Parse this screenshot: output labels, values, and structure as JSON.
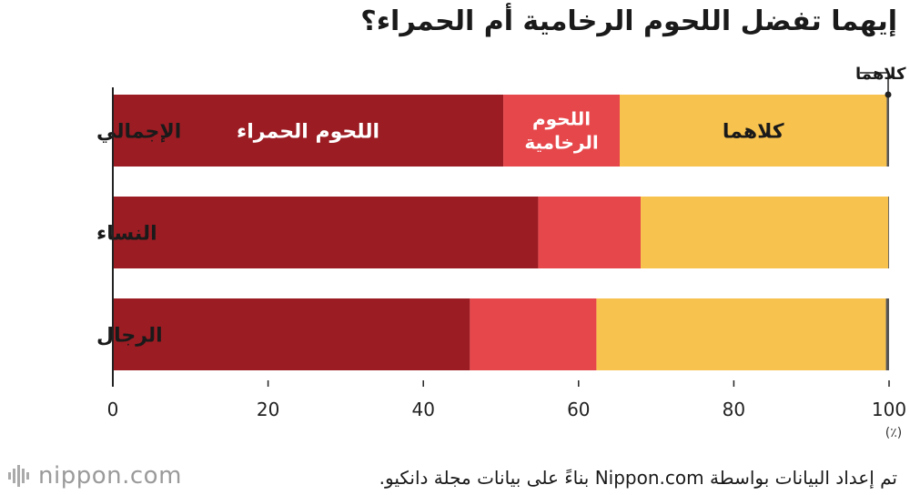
{
  "title": "إيهما تفضل اللحوم الرخامية أم الحمراء؟",
  "unit_label": "(٪)",
  "source": "تم إعداد البيانات بواسطة Nippon.com بناءً على بيانات مجلة دانكيو.",
  "logo": "nippon.com",
  "colors": {
    "red_meat": "#9b1c23",
    "marbled": "#e6474b",
    "both": "#f8c24e",
    "neither": "#555555"
  },
  "chart_data": {
    "type": "bar",
    "orientation": "horizontal",
    "stacked": true,
    "title": "إيهما تفضل اللحوم الرخامية أم الحمراء؟",
    "categories": [
      "الإجمالي",
      "النساء",
      "الرجال"
    ],
    "series": [
      {
        "name": "اللحوم الحمراء",
        "values": [
          50.3,
          54.8,
          46.0
        ]
      },
      {
        "name": "اللحوم الرخامية",
        "values": [
          15.0,
          13.2,
          16.3
        ]
      },
      {
        "name": "كلاهما",
        "values": [
          34.4,
          31.9,
          37.3
        ]
      },
      {
        "name": "لا أحب كلاهما",
        "values": [
          0.3,
          0.1,
          0.4
        ]
      }
    ],
    "xlim": [
      0,
      100
    ],
    "xticks": [
      "0",
      "20",
      "40",
      "60",
      "80",
      "100"
    ],
    "grid": false
  },
  "labels": {
    "red_meat": "اللحوم الحمراء",
    "marbled_line1": "اللحوم",
    "marbled_line2": "الرخامية",
    "both": "كلاهما",
    "neither": "لا أحب كلاهما"
  }
}
